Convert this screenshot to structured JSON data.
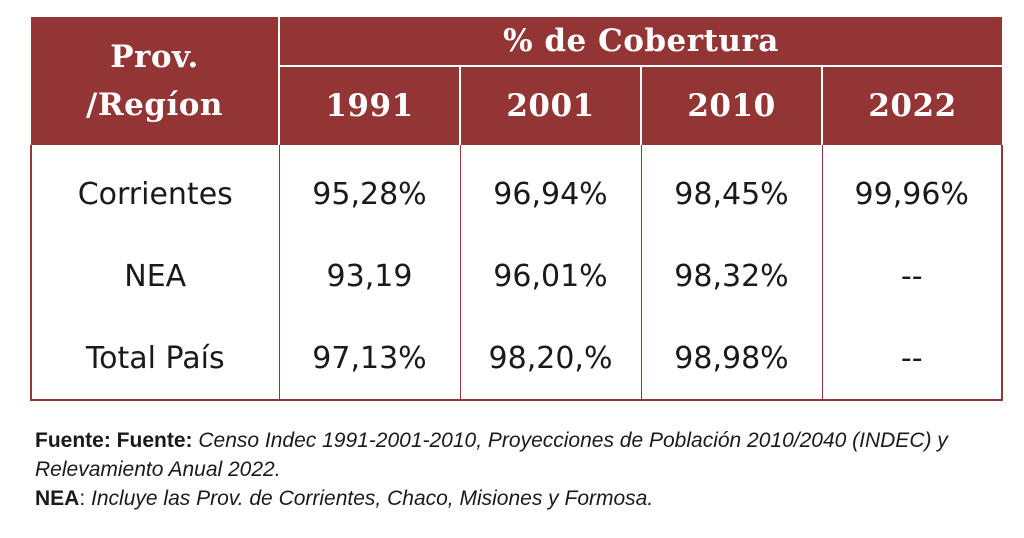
{
  "table": {
    "region_header": "Prov. /Regíon",
    "region_header_line1": "Prov.",
    "region_header_line2": "/Regíon",
    "group_header": "% de Cobertura",
    "years": [
      "1991",
      "2001",
      "2010",
      "2022"
    ],
    "rows": [
      {
        "region": "Corrientes",
        "values": [
          "95,28%",
          "96,94%",
          "98,45%",
          "99,96%"
        ]
      },
      {
        "region": "NEA",
        "values": [
          "93,19",
          "96,01%",
          "98,32%",
          "--"
        ]
      },
      {
        "region": "Total País",
        "values": [
          "97,13%",
          "98,20,%",
          "98,98%",
          "--"
        ]
      }
    ],
    "colors": {
      "header_bg": "#943535",
      "header_text": "#ffffff",
      "border": "#943535"
    }
  },
  "notes": {
    "source_label": "Fuente: Fuente:",
    "source_text": "Censo Indec 1991-2001-2010, Proyecciones de Población 2010/2040 (INDEC) y Relevamiento Anual 2022.",
    "nea_label": "NEA",
    "nea_sep": ":",
    "nea_text": "Incluye las Prov. de Corrientes, Chaco, Misiones y Formosa."
  }
}
